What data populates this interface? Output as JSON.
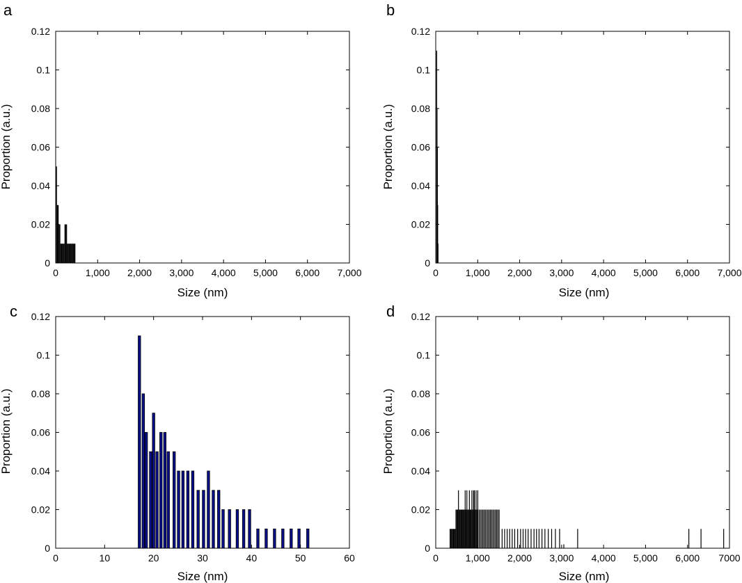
{
  "chart_data": [
    {
      "panel": "a",
      "type": "bar",
      "title": "",
      "xlabel": "Size (nm)",
      "ylabel": "Proportion (a.u.)",
      "xlim": [
        0,
        7000
      ],
      "ylim": [
        0,
        0.12
      ],
      "xticks": [
        0,
        1000,
        2000,
        3000,
        4000,
        5000,
        6000,
        7000
      ],
      "xtick_labels": [
        "0",
        "1,000",
        "2,000",
        "3,000",
        "4,000",
        "5,000",
        "6,000",
        "7,000"
      ],
      "yticks": [
        0,
        0.02,
        0.04,
        0.06,
        0.08,
        0.1,
        0.12
      ],
      "ytick_labels": [
        "0",
        "0.02",
        "0.04",
        "0.06",
        "0.08",
        "0.1",
        "0.12"
      ],
      "bar_color": "#000000",
      "bar_width": 20,
      "x": [
        20,
        40,
        60,
        80,
        100,
        120,
        140,
        160,
        180,
        200,
        220,
        240,
        260,
        280,
        300,
        320,
        340,
        360,
        380,
        400,
        420,
        440,
        460
      ],
      "values": [
        0.05,
        0.03,
        0.03,
        0.02,
        0.02,
        0.01,
        0.01,
        0.01,
        0.01,
        0.01,
        0.02,
        0.02,
        0.02,
        0.01,
        0.01,
        0.01,
        0.01,
        0.01,
        0.01,
        0.01,
        0.01,
        0.01,
        0.01
      ]
    },
    {
      "panel": "b",
      "type": "bar",
      "title": "",
      "xlabel": "Size (nm)",
      "ylabel": "Proportion (a.u.)",
      "xlim": [
        0,
        7000
      ],
      "ylim": [
        0,
        0.12
      ],
      "xticks": [
        0,
        1000,
        2000,
        3000,
        4000,
        5000,
        6000,
        7000
      ],
      "xtick_labels": [
        "0",
        "1,000",
        "2,000",
        "3,000",
        "4,000",
        "5,000",
        "6,000",
        "7,000"
      ],
      "yticks": [
        0,
        0.02,
        0.04,
        0.06,
        0.08,
        0.1,
        0.12
      ],
      "ytick_labels": [
        "0",
        "0.02",
        "0.04",
        "0.06",
        "0.08",
        "0.1",
        "0.12"
      ],
      "bar_color": "#000000",
      "bar_width": 8,
      "x": [
        17,
        25,
        33,
        41,
        49
      ],
      "values": [
        0.11,
        0.08,
        0.06,
        0.03,
        0.01
      ]
    },
    {
      "panel": "c",
      "type": "bar",
      "title": "",
      "xlabel": "Size (nm)",
      "ylabel": "Proportion (a.u.)",
      "xlim": [
        0,
        60
      ],
      "ylim": [
        0,
        0.12
      ],
      "xticks": [
        0,
        10,
        20,
        30,
        40,
        50,
        60
      ],
      "xtick_labels": [
        "0",
        "10",
        "20",
        "30",
        "40",
        "50",
        "60"
      ],
      "yticks": [
        0,
        0.02,
        0.04,
        0.06,
        0.08,
        0.1,
        0.12
      ],
      "ytick_labels": [
        "0",
        "0.02",
        "0.04",
        "0.06",
        "0.08",
        "0.1",
        "0.12"
      ],
      "bar_color": "#0a108a",
      "bar_width": 0.5,
      "x": [
        17.1,
        17.9,
        18.5,
        19.4,
        20.0,
        20.7,
        21.5,
        22.3,
        23.0,
        24.2,
        25.1,
        26.0,
        27.0,
        28.0,
        29.1,
        30.2,
        31.2,
        32.2,
        33.3,
        34.2,
        35.5,
        37.1,
        38.4,
        39.6,
        41.3,
        43.0,
        44.7,
        46.4,
        48.1,
        49.7,
        51.5
      ],
      "values": [
        0.11,
        0.08,
        0.06,
        0.05,
        0.07,
        0.05,
        0.06,
        0.06,
        0.05,
        0.05,
        0.04,
        0.04,
        0.04,
        0.04,
        0.03,
        0.03,
        0.04,
        0.03,
        0.03,
        0.02,
        0.02,
        0.02,
        0.02,
        0.02,
        0.01,
        0.01,
        0.01,
        0.01,
        0.01,
        0.01,
        0.01
      ]
    },
    {
      "panel": "d",
      "type": "bar",
      "title": "",
      "xlabel": "Size (nm)",
      "ylabel": "Proportion (a.u.)",
      "xlim": [
        0,
        7000
      ],
      "ylim": [
        0,
        0.12
      ],
      "xticks": [
        0,
        1000,
        2000,
        3000,
        4000,
        5000,
        6000,
        7000
      ],
      "xtick_labels": [
        "0",
        "1,000",
        "2,000",
        "3,000",
        "4,000",
        "5,000",
        "6,000",
        "7000"
      ],
      "yticks": [
        0,
        0.02,
        0.04,
        0.06,
        0.08,
        0.1,
        0.12
      ],
      "ytick_labels": [
        "0",
        "0.02",
        "0.04",
        "0.06",
        "0.08",
        "0.1",
        "0.12"
      ],
      "bar_color": "#000000",
      "bar_width": 16,
      "x": [
        340,
        360,
        380,
        400,
        420,
        440,
        460,
        480,
        500,
        520,
        540,
        560,
        580,
        600,
        620,
        640,
        660,
        680,
        700,
        720,
        740,
        760,
        780,
        800,
        820,
        840,
        860,
        880,
        900,
        920,
        940,
        960,
        980,
        1000,
        1030,
        1060,
        1090,
        1120,
        1150,
        1180,
        1210,
        1240,
        1270,
        1300,
        1330,
        1360,
        1390,
        1420,
        1450,
        1480,
        1510,
        1580,
        1640,
        1700,
        1760,
        1820,
        1880,
        1950,
        2020,
        2080,
        2140,
        2200,
        2270,
        2340,
        2400,
        2460,
        2530,
        2600,
        2680,
        2760,
        2850,
        2950,
        3050,
        3380,
        6030,
        6320,
        6860
      ],
      "values": [
        0.01,
        0.01,
        0.01,
        0.01,
        0.01,
        0.01,
        0.01,
        0.02,
        0.02,
        0.02,
        0.03,
        0.02,
        0.02,
        0.02,
        0.02,
        0.02,
        0.02,
        0.02,
        0.03,
        0.02,
        0.03,
        0.02,
        0.02,
        0.03,
        0.02,
        0.02,
        0.03,
        0.02,
        0.03,
        0.03,
        0.02,
        0.03,
        0.02,
        0.03,
        0.02,
        0.02,
        0.02,
        0.02,
        0.02,
        0.02,
        0.02,
        0.02,
        0.02,
        0.02,
        0.02,
        0.02,
        0.02,
        0.02,
        0.02,
        0.02,
        0.02,
        0.01,
        0.01,
        0.01,
        0.01,
        0.01,
        0.01,
        0.01,
        0.01,
        0.01,
        0.01,
        0.01,
        0.01,
        0.01,
        0.01,
        0.01,
        0.01,
        0.01,
        0.01,
        0.01,
        0.01,
        0.01,
        0.002,
        0.01,
        0.01,
        0.01,
        0.01
      ]
    }
  ]
}
